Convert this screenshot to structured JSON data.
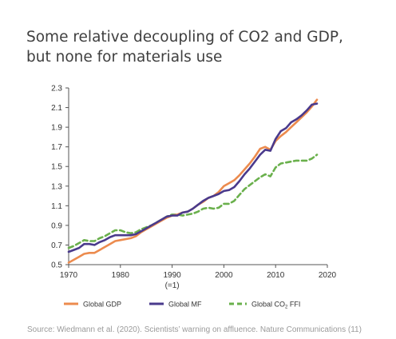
{
  "chart_data": {
    "type": "line",
    "title_lines": [
      "Some relative decoupling of CO2 and GDP,",
      "but none for materials use"
    ],
    "xlim": [
      1970,
      2020
    ],
    "ylim": [
      0.5,
      2.3
    ],
    "x_ticks": [
      "1970",
      "1980",
      "1990",
      "2000",
      "2010",
      "2020"
    ],
    "x_tick_note": "(=1)",
    "y_ticks": [
      "0.5",
      "0.7",
      "0.9",
      "1.1",
      "1.3",
      "1.5",
      "1.7",
      "1.9",
      "2.1",
      "2.3"
    ],
    "x": [
      1970,
      1971,
      1972,
      1973,
      1974,
      1975,
      1976,
      1977,
      1978,
      1979,
      1980,
      1981,
      1982,
      1983,
      1984,
      1985,
      1986,
      1987,
      1988,
      1989,
      1990,
      1991,
      1992,
      1993,
      1994,
      1995,
      1996,
      1997,
      1998,
      1999,
      2000,
      2001,
      2002,
      2003,
      2004,
      2005,
      2006,
      2007,
      2008,
      2009,
      2010,
      2011,
      2012,
      2013,
      2014,
      2015,
      2016,
      2017,
      2018
    ],
    "series": [
      {
        "name": "Global GDP",
        "color": "#ec8b4e",
        "dash": "solid",
        "values": [
          0.52,
          0.55,
          0.58,
          0.61,
          0.62,
          0.62,
          0.65,
          0.68,
          0.71,
          0.74,
          0.75,
          0.76,
          0.77,
          0.79,
          0.83,
          0.86,
          0.89,
          0.92,
          0.95,
          0.98,
          1.0,
          1.01,
          1.03,
          1.04,
          1.07,
          1.11,
          1.14,
          1.18,
          1.2,
          1.24,
          1.3,
          1.33,
          1.36,
          1.41,
          1.47,
          1.53,
          1.6,
          1.68,
          1.7,
          1.67,
          1.76,
          1.81,
          1.85,
          1.9,
          1.95,
          2.0,
          2.05,
          2.11,
          2.18
        ]
      },
      {
        "name": "Global MF",
        "color": "#4a3a8c",
        "dash": "solid",
        "values": [
          0.63,
          0.65,
          0.67,
          0.71,
          0.71,
          0.7,
          0.73,
          0.75,
          0.78,
          0.8,
          0.8,
          0.8,
          0.8,
          0.81,
          0.84,
          0.87,
          0.9,
          0.93,
          0.96,
          0.99,
          1.0,
          1.0,
          1.03,
          1.04,
          1.07,
          1.11,
          1.15,
          1.18,
          1.2,
          1.22,
          1.25,
          1.26,
          1.29,
          1.35,
          1.42,
          1.48,
          1.55,
          1.62,
          1.67,
          1.66,
          1.78,
          1.86,
          1.89,
          1.95,
          1.98,
          2.02,
          2.07,
          2.13,
          2.14
        ]
      },
      {
        "name": "Global CO₂ FFI",
        "color": "#6ab04c",
        "dash": "dashed",
        "values": [
          0.67,
          0.69,
          0.72,
          0.75,
          0.74,
          0.74,
          0.77,
          0.79,
          0.82,
          0.85,
          0.85,
          0.83,
          0.82,
          0.83,
          0.86,
          0.88,
          0.9,
          0.93,
          0.96,
          0.99,
          1.01,
          1.01,
          1.0,
          1.01,
          1.02,
          1.04,
          1.07,
          1.08,
          1.07,
          1.08,
          1.12,
          1.12,
          1.15,
          1.21,
          1.27,
          1.31,
          1.35,
          1.39,
          1.42,
          1.4,
          1.49,
          1.53,
          1.54,
          1.55,
          1.56,
          1.56,
          1.56,
          1.58,
          1.62
        ]
      }
    ],
    "legend_position": "bottom",
    "grid": false
  },
  "legend": {
    "gdp": "Global GDP",
    "mf": "Global MF",
    "co2_prefix": "Global CO",
    "co2_sub": "2",
    "co2_suffix": " FFI"
  },
  "source": "Source: Wiedmann et al. (2020). Scientists’ warning on affluence. Nature Communications (11)"
}
